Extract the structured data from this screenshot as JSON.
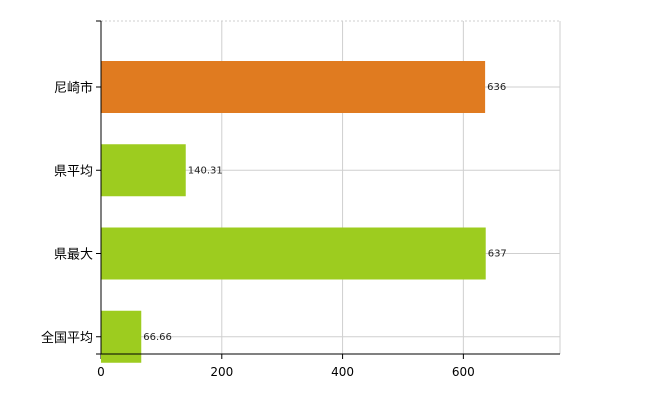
{
  "chart_data": {
    "type": "bar",
    "orientation": "horizontal",
    "categories": [
      "尼崎市",
      "県平均",
      "県最大",
      "全国平均"
    ],
    "values": [
      636,
      140.31,
      637,
      66.66
    ],
    "value_labels": [
      "636",
      "140.31",
      "637",
      "66.66"
    ],
    "colors": [
      "#e07b20",
      "#9dcc1f",
      "#9dcc1f",
      "#9dcc1f"
    ],
    "xlim": [
      0,
      760
    ],
    "x_ticks": [
      0,
      200,
      400,
      600
    ],
    "x_tick_labels": [
      "0",
      "200",
      "400",
      "600"
    ],
    "grid": true
  }
}
